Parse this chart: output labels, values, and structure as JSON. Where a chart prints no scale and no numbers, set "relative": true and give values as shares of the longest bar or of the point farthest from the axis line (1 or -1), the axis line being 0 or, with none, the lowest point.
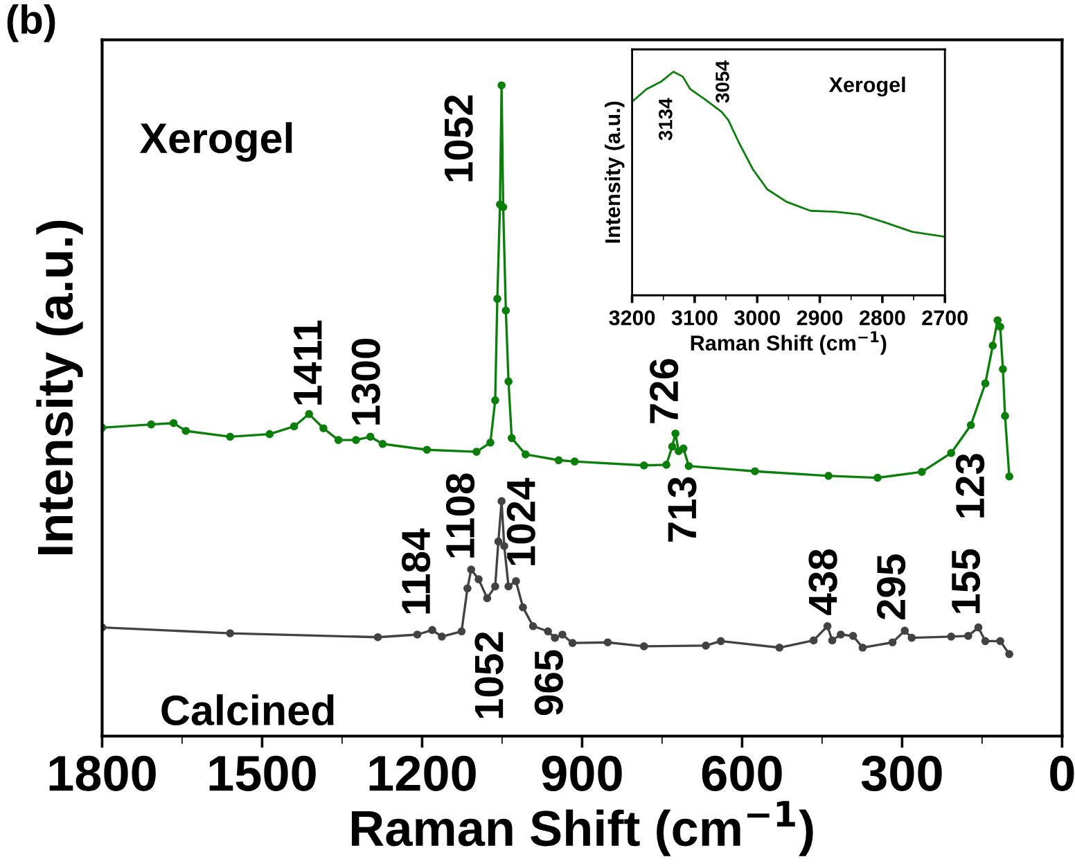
{
  "chart_data": [
    {
      "type": "line",
      "relative": true,
      "xlabel": "Raman Shift (cm$^{−1}$)",
      "ylabel": "Intensity (a.u.)",
      "xlim": [
        1800,
        0
      ],
      "xticks": [
        1800,
        1500,
        1200,
        900,
        600,
        300,
        0
      ],
      "tick_labels": "x",
      "marker": "circle",
      "line_style": "solid",
      "grid": false,
      "legend": false,
      "series": [
        {
          "color": "#0a7f0a",
          "x": [
            1800,
            1708,
            1666,
            1643,
            1560,
            1486,
            1440,
            1412,
            1385,
            1357,
            1324,
            1297,
            1274,
            1191,
            1098,
            1072,
            1063,
            1059,
            1054,
            1051,
            1048,
            1043,
            1038,
            1032,
            1006,
            944,
            914,
            784,
            742,
            731,
            725,
            719,
            710,
            700,
            576,
            438,
            346,
            263,
            208,
            171,
            144,
            130,
            121,
            116,
            111,
            107,
            99
          ],
          "values": [
            0.474,
            0.479,
            0.481,
            0.469,
            0.46,
            0.464,
            0.476,
            0.495,
            0.473,
            0.455,
            0.455,
            0.46,
            0.449,
            0.44,
            0.437,
            0.451,
            0.516,
            0.672,
            0.817,
            1.0,
            0.813,
            0.654,
            0.545,
            0.458,
            0.433,
            0.424,
            0.422,
            0.416,
            0.417,
            0.445,
            0.465,
            0.438,
            0.442,
            0.415,
            0.407,
            0.4,
            0.397,
            0.406,
            0.435,
            0.478,
            0.542,
            0.6,
            0.639,
            0.629,
            0.564,
            0.492,
            0.399
          ]
        },
        {
          "name": "Calcined",
          "color": "#424242",
          "x": [
            1800,
            1560,
            1283,
            1209,
            1181,
            1163,
            1126,
            1115,
            1108,
            1094,
            1078,
            1063,
            1057,
            1051,
            1046,
            1038,
            1024,
            1011,
            992,
            964,
            951,
            937,
            918,
            852,
            784,
            668,
            640,
            530,
            466,
            440,
            431,
            415,
            392,
            374,
            318,
            295,
            282,
            208,
            176,
            157,
            144,
            116,
            99
          ],
          "values": [
            0.167,
            0.158,
            0.152,
            0.156,
            0.163,
            0.153,
            0.161,
            0.227,
            0.256,
            0.241,
            0.212,
            0.23,
            0.299,
            0.361,
            0.292,
            0.23,
            0.238,
            0.198,
            0.169,
            0.161,
            0.151,
            0.156,
            0.143,
            0.144,
            0.138,
            0.139,
            0.146,
            0.136,
            0.147,
            0.169,
            0.147,
            0.156,
            0.154,
            0.136,
            0.144,
            0.162,
            0.151,
            0.153,
            0.154,
            0.167,
            0.146,
            0.146,
            0.126
          ]
        }
      ],
      "annotations": [
        "(b)",
        "1052",
        "1411",
        "1300",
        "726",
        "713",
        "123",
        "1184",
        "1108",
        "1024",
        "1052",
        "965",
        "438",
        "295",
        "155",
        "Xerogel"
      ]
    },
    {
      "type": "line",
      "relative": true,
      "xlabel": "Raman Shift (cm$^{−1}$)",
      "ylabel": "Intensity (a.u.)",
      "xlim": [
        3200,
        2700
      ],
      "xticks": [
        3200,
        3100,
        3000,
        2900,
        2800,
        2700
      ],
      "tick_labels": "x",
      "marker": "none",
      "line_style": "solid",
      "grid": false,
      "legend": false,
      "series": [
        {
          "name": "Xerogel",
          "color": "#0a7f0a",
          "x": [
            3200,
            3177,
            3154,
            3134,
            3119,
            3107,
            3084,
            3057,
            3046,
            3030,
            3007,
            2984,
            2953,
            2915,
            2876,
            2837,
            2799,
            2752,
            2700
          ],
          "values": [
            0.866,
            0.922,
            0.955,
            1.0,
            0.978,
            0.922,
            0.877,
            0.821,
            0.783,
            0.687,
            0.564,
            0.474,
            0.418,
            0.378,
            0.374,
            0.362,
            0.329,
            0.284,
            0.262
          ]
        }
      ],
      "annotations": [
        "3134",
        "3054"
      ]
    }
  ]
}
